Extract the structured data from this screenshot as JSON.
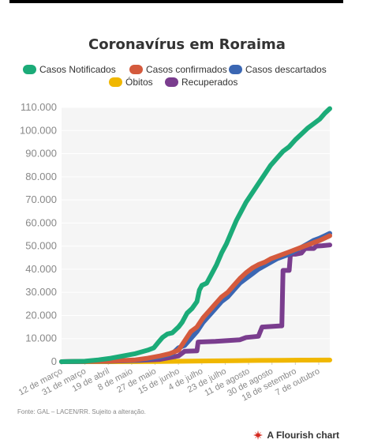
{
  "chart_data": {
    "type": "line",
    "title": "Coronavírus em Roraima",
    "source": "Fonte: GAL – LACEN/RR. Sujeito a alteração.",
    "xlabel": "",
    "ylabel": "",
    "ylim": [
      0,
      110000
    ],
    "y_ticks": [
      "0",
      "10.000",
      "20.000",
      "30.000",
      "40.000",
      "50.000",
      "60.000",
      "70.000",
      "80.000",
      "90.000",
      "100.000",
      "110.000"
    ],
    "x_ticks": [
      "12 de março",
      "31 de março",
      "19 de abril",
      "8 de maio",
      "27 de maio",
      "15 de junho",
      "4 de julho",
      "23 de julho",
      "11 de agosto",
      "30 de agosto",
      "18 de setembro",
      "7 de outubro"
    ],
    "x_tick_days": [
      0,
      19,
      38,
      57,
      76,
      95,
      114,
      133,
      152,
      171,
      190,
      209
    ],
    "x_range_days": [
      0,
      218
    ],
    "grid": true,
    "legend_position": "top",
    "series": [
      {
        "name": "Casos Notificados",
        "color": "#1bab78",
        "x": [
          0,
          19,
          30,
          40,
          50,
          60,
          70,
          75,
          78,
          82,
          86,
          90,
          95,
          98,
          102,
          106,
          110,
          112,
          114,
          118,
          122,
          126,
          130,
          134,
          138,
          142,
          146,
          150,
          155,
          160,
          165,
          170,
          175,
          180,
          185,
          190,
          195,
          200,
          205,
          210,
          214,
          218
        ],
        "y": [
          0,
          200,
          800,
          1500,
          2500,
          3500,
          5000,
          6000,
          8000,
          10500,
          12000,
          12500,
          15000,
          17000,
          21000,
          23000,
          26000,
          31000,
          33000,
          34000,
          38000,
          42000,
          47000,
          51000,
          56000,
          61000,
          65000,
          69000,
          73000,
          77000,
          81000,
          85000,
          88000,
          91000,
          93000,
          96000,
          98500,
          101000,
          103000,
          105000,
          107500,
          109500
        ]
      },
      {
        "name": "Casos confirmados",
        "color": "#d45a3d",
        "x": [
          0,
          40,
          60,
          70,
          80,
          88,
          95,
          100,
          105,
          110,
          115,
          120,
          125,
          130,
          135,
          140,
          145,
          150,
          155,
          160,
          165,
          170,
          175,
          180,
          185,
          190,
          195,
          200,
          205,
          210,
          214,
          218
        ],
        "y": [
          0,
          300,
          800,
          1500,
          2500,
          3500,
          5000,
          9000,
          13000,
          15000,
          19000,
          22000,
          25000,
          28000,
          30000,
          33000,
          36000,
          38500,
          40500,
          42000,
          43000,
          44500,
          45500,
          46500,
          47500,
          48500,
          49500,
          50500,
          51500,
          52500,
          53500,
          54500
        ]
      },
      {
        "name": "Casos descartados",
        "color": "#3b67b3",
        "x": [
          0,
          40,
          60,
          70,
          80,
          90,
          95,
          100,
          105,
          110,
          115,
          120,
          125,
          130,
          135,
          140,
          145,
          150,
          155,
          160,
          165,
          170,
          175,
          180,
          185,
          190,
          195,
          200,
          205,
          210,
          214,
          218
        ],
        "y": [
          0,
          200,
          600,
          1200,
          2000,
          3500,
          6000,
          7000,
          10000,
          13000,
          17000,
          20000,
          23000,
          26000,
          28000,
          31000,
          34000,
          36000,
          38000,
          40000,
          41500,
          43000,
          44500,
          45500,
          46500,
          48000,
          49500,
          51000,
          52500,
          53500,
          54500,
          55500
        ]
      },
      {
        "name": "Óbitos",
        "color": "#f0b700",
        "x": [
          0,
          40,
          60,
          80,
          100,
          120,
          140,
          160,
          180,
          200,
          218
        ],
        "y": [
          0,
          10,
          30,
          100,
          200,
          350,
          450,
          550,
          620,
          680,
          720
        ]
      },
      {
        "name": "Recuperados",
        "color": "#7a3d8e",
        "x": [
          0,
          60,
          80,
          95,
          100,
          101,
          110,
          111,
          125,
          130,
          145,
          150,
          160,
          163,
          178,
          179,
          180,
          185,
          186,
          190,
          195,
          198,
          205,
          207,
          212,
          218
        ],
        "y": [
          0,
          500,
          1000,
          2500,
          4500,
          4500,
          4700,
          8500,
          8800,
          9000,
          9500,
          10500,
          11000,
          15000,
          15500,
          15500,
          39500,
          39500,
          46500,
          46500,
          47000,
          49000,
          49000,
          50000,
          50200,
          50500
        ]
      }
    ]
  }
}
